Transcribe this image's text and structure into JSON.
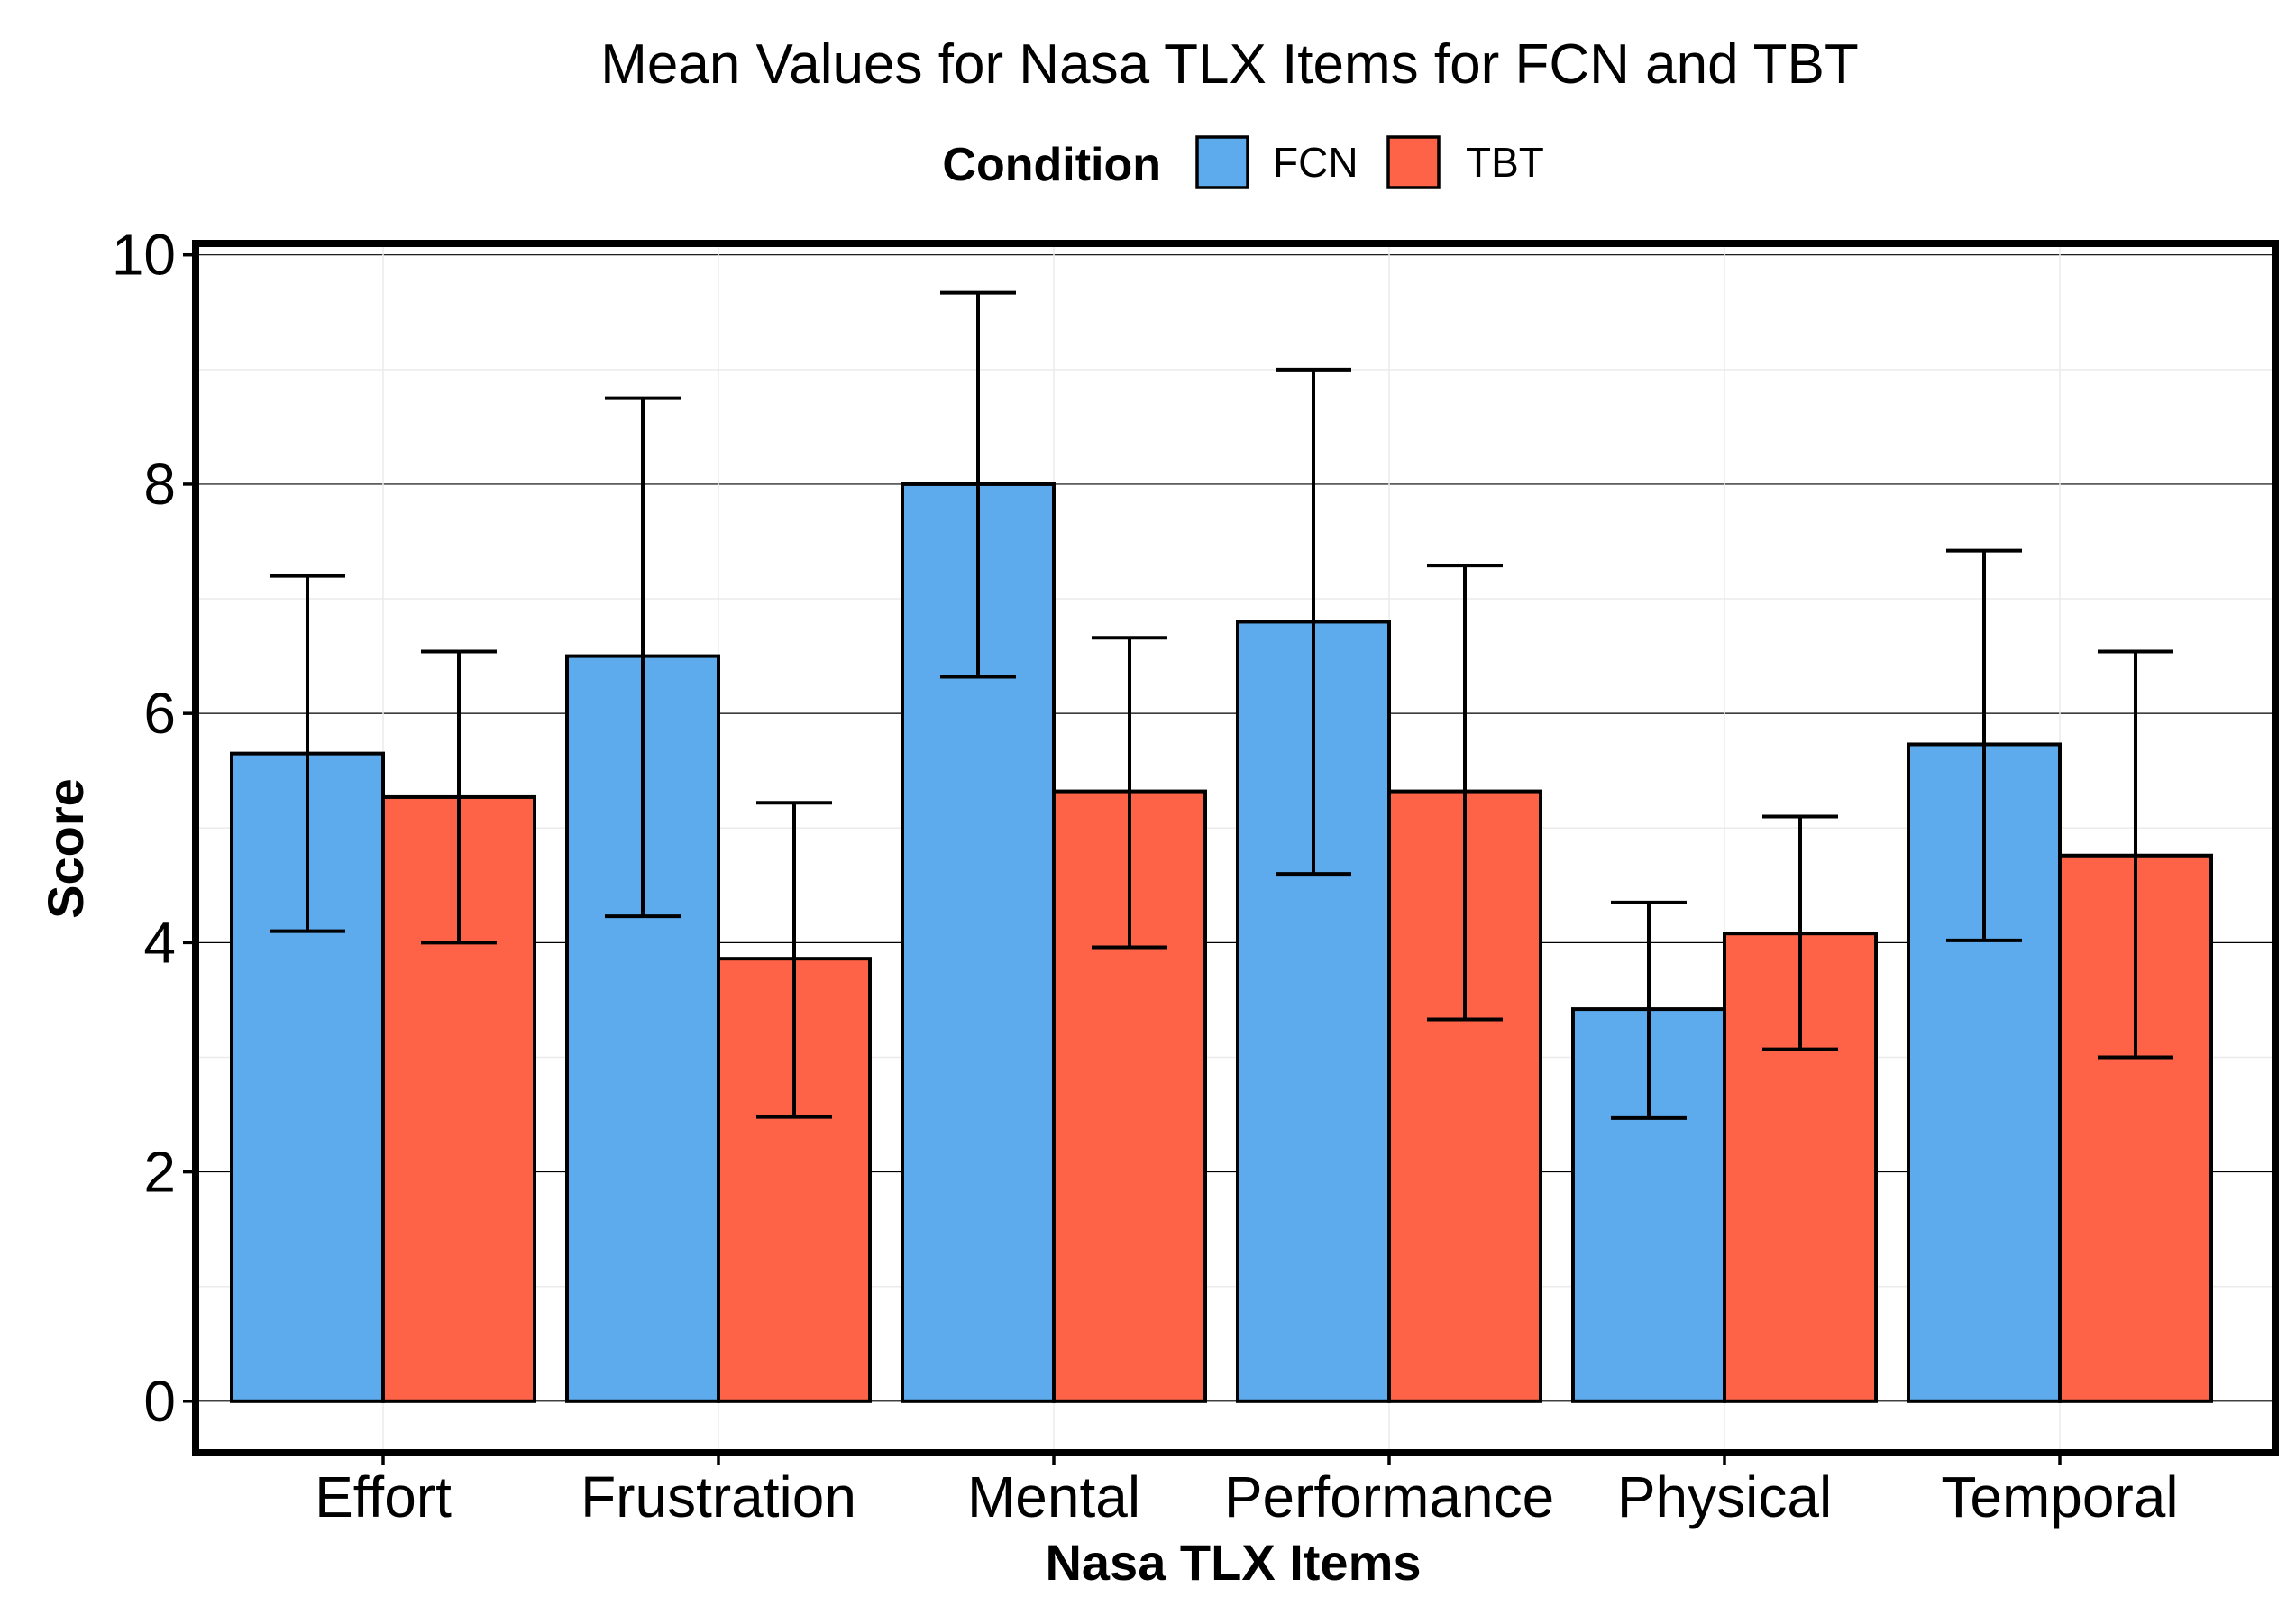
{
  "chart_data": {
    "type": "bar",
    "title": "Mean Values for Nasa TLX Items for FCN and TBT",
    "xlabel": "Nasa TLX Items",
    "ylabel": "Score",
    "ylim": [
      -0.45,
      10.1
    ],
    "yticks": [
      0,
      2,
      4,
      6,
      8,
      10
    ],
    "grid": true,
    "legend": {
      "title": "Condition",
      "position": "top"
    },
    "categories": [
      "Effort",
      "Frustration",
      "Mental",
      "Performance",
      "Physical",
      "Temporal"
    ],
    "series": [
      {
        "name": "FCN",
        "color": "#5DABEC",
        "values": [
          5.65,
          6.5,
          8.0,
          6.8,
          3.42,
          5.73
        ],
        "error_low": [
          4.1,
          4.23,
          6.32,
          4.6,
          2.47,
          4.02
        ],
        "error_high": [
          7.2,
          8.75,
          9.67,
          9.0,
          4.35,
          7.42
        ]
      },
      {
        "name": "TBT",
        "color": "#FF6347",
        "values": [
          5.27,
          3.86,
          5.32,
          5.32,
          4.08,
          4.76
        ],
        "error_low": [
          4.0,
          2.48,
          3.96,
          3.33,
          3.07,
          3.0
        ],
        "error_high": [
          6.54,
          5.22,
          6.66,
          7.29,
          5.1,
          6.54
        ]
      }
    ]
  }
}
